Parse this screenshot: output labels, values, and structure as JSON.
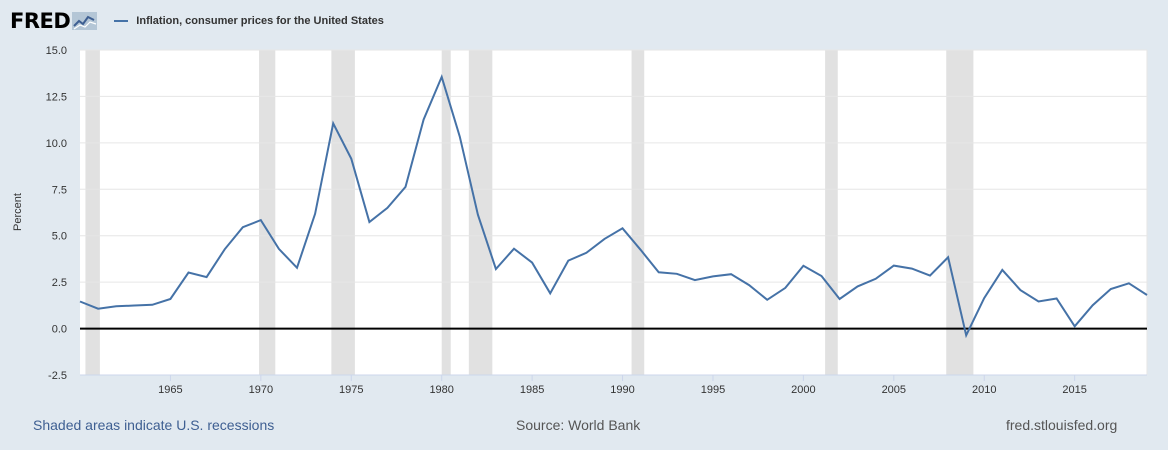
{
  "header": {
    "logo_text": "FRED",
    "logo_icon": "fred-chart-icon",
    "legend_label": "Inflation, consumer prices for the United States"
  },
  "chart_data": {
    "type": "line",
    "title": "",
    "ylabel": "Percent",
    "xlabel": "",
    "xlim": [
      1960,
      2019
    ],
    "ylim": [
      -2.5,
      15.0
    ],
    "yticks": [
      -2.5,
      0.0,
      2.5,
      5.0,
      7.5,
      10.0,
      12.5,
      15.0
    ],
    "ytick_labels": [
      "-2.5",
      "0.0",
      "2.5",
      "5.0",
      "7.5",
      "10.0",
      "12.5",
      "15.0"
    ],
    "xticks": [
      1965,
      1970,
      1975,
      1980,
      1985,
      1990,
      1995,
      2000,
      2005,
      2010,
      2015
    ],
    "xtick_labels": [
      "1965",
      "1970",
      "1975",
      "1980",
      "1985",
      "1990",
      "1995",
      "2000",
      "2005",
      "2010",
      "2015"
    ],
    "grid": true,
    "line_color": "#4572a7",
    "recession_color": "#e1e1e1",
    "recessions": [
      [
        1960.3,
        1961.1
      ],
      [
        1969.9,
        1970.8
      ],
      [
        1973.9,
        1975.2
      ],
      [
        1980.0,
        1980.5
      ],
      [
        1981.5,
        1982.8
      ],
      [
        1990.5,
        1991.2
      ],
      [
        2001.2,
        2001.9
      ],
      [
        2007.9,
        2009.4
      ]
    ],
    "series": [
      {
        "name": "Inflation, consumer prices for the United States",
        "x": [
          1960,
          1961,
          1962,
          1963,
          1964,
          1965,
          1966,
          1967,
          1968,
          1969,
          1970,
          1971,
          1972,
          1973,
          1974,
          1975,
          1976,
          1977,
          1978,
          1979,
          1980,
          1981,
          1982,
          1983,
          1984,
          1985,
          1986,
          1987,
          1988,
          1989,
          1990,
          1991,
          1992,
          1993,
          1994,
          1995,
          1996,
          1997,
          1998,
          1999,
          2000,
          2001,
          2002,
          2003,
          2004,
          2005,
          2006,
          2007,
          2008,
          2009,
          2010,
          2011,
          2012,
          2013,
          2014,
          2015,
          2016,
          2017,
          2018,
          2019
        ],
        "values": [
          1.46,
          1.07,
          1.2,
          1.24,
          1.28,
          1.59,
          3.02,
          2.77,
          4.27,
          5.46,
          5.84,
          4.29,
          3.27,
          6.18,
          11.05,
          9.14,
          5.74,
          6.5,
          7.63,
          11.25,
          13.55,
          10.33,
          6.13,
          3.21,
          4.3,
          3.55,
          1.9,
          3.66,
          4.08,
          4.83,
          5.4,
          4.24,
          3.03,
          2.95,
          2.61,
          2.81,
          2.93,
          2.34,
          1.55,
          2.19,
          3.38,
          2.83,
          1.59,
          2.27,
          2.68,
          3.39,
          3.23,
          2.85,
          3.84,
          -0.36,
          1.64,
          3.16,
          2.07,
          1.46,
          1.62,
          0.12,
          1.26,
          2.13,
          2.44,
          1.81
        ]
      }
    ]
  },
  "footer": {
    "recession_note": "Shaded areas indicate U.S. recessions",
    "source": "Source: World Bank",
    "site": "fred.stlouisfed.org"
  }
}
